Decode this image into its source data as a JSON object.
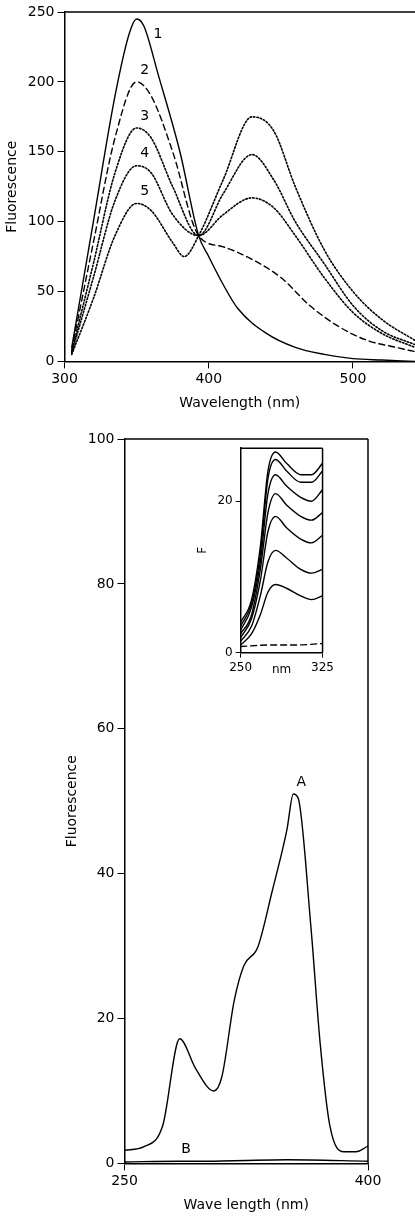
{
  "chart_data": [
    {
      "type": "line",
      "xlabel": "Wavelength (nm)",
      "ylabel": "Fluorescence",
      "xlim": [
        300,
        543
      ],
      "ylim": [
        0,
        250
      ],
      "xticks": [
        300,
        400,
        500
      ],
      "yticks": [
        0,
        50,
        100,
        150,
        200,
        250
      ],
      "grid": false,
      "legend": false,
      "marker": "none",
      "series": [
        {
          "color": "#000000",
          "line_style": "solid",
          "x": [
            305,
            320,
            335,
            345,
            350,
            355,
            365,
            380,
            393,
            400,
            410,
            420,
            440,
            460,
            480,
            500,
            520,
            543
          ],
          "values": [
            10,
            100,
            190,
            235,
            245,
            240,
            205,
            150,
            90,
            75,
            55,
            38,
            20,
            10,
            5,
            2,
            1,
            0
          ]
        },
        {
          "color": "#000000",
          "line_style": "dashed",
          "x": [
            305,
            320,
            335,
            350,
            360,
            375,
            393,
            410,
            430,
            450,
            470,
            490,
            510,
            530,
            543
          ],
          "values": [
            8,
            85,
            160,
            200,
            190,
            150,
            90,
            82,
            73,
            60,
            40,
            25,
            15,
            10,
            7
          ]
        },
        {
          "color": "#000000",
          "line_style": "dotted",
          "x": [
            305,
            320,
            335,
            350,
            360,
            375,
            393,
            410,
            430,
            445,
            460,
            480,
            500,
            520,
            543
          ],
          "values": [
            7,
            70,
            135,
            167,
            160,
            125,
            90,
            105,
            117,
            110,
            90,
            60,
            35,
            20,
            10
          ]
        },
        {
          "color": "#000000",
          "line_style": "dotted",
          "x": [
            305,
            320,
            335,
            350,
            360,
            375,
            393,
            410,
            430,
            445,
            460,
            480,
            500,
            520,
            543
          ],
          "values": [
            6,
            60,
            115,
            140,
            135,
            105,
            90,
            120,
            148,
            130,
            100,
            70,
            40,
            22,
            12
          ]
        },
        {
          "color": "#000000",
          "line_style": "dotted",
          "x": [
            305,
            320,
            335,
            350,
            360,
            375,
            383,
            393,
            410,
            430,
            445,
            460,
            480,
            500,
            520,
            543
          ],
          "values": [
            5,
            45,
            90,
            113,
            108,
            85,
            75,
            90,
            130,
            175,
            165,
            125,
            80,
            50,
            30,
            15
          ]
        }
      ],
      "annotations": [
        {
          "text": "1",
          "x": 355,
          "y": 240
        },
        {
          "text": "2",
          "x": 350,
          "y": 200
        },
        {
          "text": "3",
          "x": 350,
          "y": 167
        },
        {
          "text": "4",
          "x": 350,
          "y": 140
        },
        {
          "text": "5",
          "x": 350,
          "y": 113
        }
      ]
    },
    {
      "type": "line",
      "xlabel": "Wave length (nm)",
      "ylabel": "Fluorescence",
      "xlim": [
        250,
        400
      ],
      "ylim": [
        0,
        100
      ],
      "xticks": [
        250,
        400
      ],
      "yticks": [
        0,
        20,
        40,
        60,
        80,
        100
      ],
      "grid": false,
      "legend": false,
      "marker": "none",
      "series": [
        {
          "color": "#000000",
          "x": [
            250,
            262,
            273.5,
            284,
            294,
            305,
            310,
            317.6,
            323.5,
            332,
            341,
            350,
            354,
            357,
            364.7,
            370.6,
            376.5,
            385,
            392.6,
            400
          ],
          "values": [
            1.8,
            2.3,
            5.2,
            17.2,
            13,
            10,
            12,
            22.5,
            27.3,
            29.8,
            37.6,
            46,
            51,
            50.4,
            33,
            16.4,
            5.2,
            1.6,
            1.6,
            2.4
          ]
        },
        {
          "color": "#000000",
          "x": [
            250,
            283,
            300,
            350,
            400
          ],
          "values": [
            0.2,
            0.3,
            0.3,
            0.5,
            0.3
          ]
        }
      ],
      "annotations": [
        {
          "text": "A",
          "x": 354,
          "y": 51
        },
        {
          "text": "B",
          "x": 283,
          "y": 0.3
        }
      ]
    },
    {
      "type": "line",
      "xlabel": "nm",
      "ylabel": "F",
      "xlim": [
        250,
        325
      ],
      "ylim": [
        0,
        27
      ],
      "xticks": [
        250,
        325
      ],
      "yticks": [
        0,
        20
      ],
      "grid": false,
      "legend": false,
      "marker": "none",
      "series": [
        {
          "color": "#000000",
          "x": [
            250,
            260,
            268,
            275,
            282,
            292,
            305,
            315,
            325
          ],
          "values": [
            4,
            7,
            14,
            24,
            26.5,
            25,
            23.5,
            23.5,
            25
          ]
        },
        {
          "color": "#000000",
          "x": [
            250,
            260,
            268,
            275,
            282,
            292,
            305,
            315,
            325
          ],
          "values": [
            3.5,
            6.5,
            13,
            23,
            25.5,
            24,
            22.5,
            22.5,
            24
          ]
        },
        {
          "color": "#000000",
          "x": [
            250,
            260,
            268,
            275,
            282,
            292,
            305,
            315,
            325
          ],
          "values": [
            3,
            6,
            12,
            21,
            23.5,
            22,
            20.5,
            20,
            21.5
          ]
        },
        {
          "color": "#000000",
          "x": [
            250,
            260,
            268,
            275,
            282,
            292,
            305,
            315,
            325
          ],
          "values": [
            2.5,
            5,
            11,
            18.5,
            21,
            19.5,
            18,
            17.5,
            18.5
          ]
        },
        {
          "color": "#000000",
          "x": [
            250,
            260,
            268,
            275,
            282,
            292,
            305,
            315,
            325
          ],
          "values": [
            2,
            4.5,
            9.5,
            16,
            18,
            16.5,
            15,
            14.5,
            15.5
          ]
        },
        {
          "color": "#000000",
          "x": [
            250,
            260,
            268,
            275,
            282,
            292,
            305,
            315,
            325
          ],
          "values": [
            1.5,
            3.5,
            7.5,
            12,
            13.5,
            12.5,
            11,
            10.5,
            11
          ]
        },
        {
          "color": "#000000",
          "x": [
            250,
            260,
            268,
            275,
            282,
            292,
            305,
            315,
            325
          ],
          "values": [
            1,
            2.5,
            5,
            8,
            9,
            8.5,
            7.5,
            7,
            7.5
          ]
        },
        {
          "color": "#000000",
          "line_style": "dashed",
          "x": [
            250,
            275,
            300,
            325
          ],
          "values": [
            0.8,
            1,
            1,
            1.2
          ]
        }
      ]
    }
  ]
}
